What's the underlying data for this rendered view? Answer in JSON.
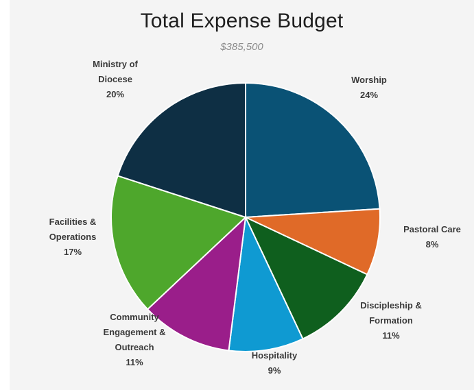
{
  "chart_data": {
    "type": "pie",
    "title": "Total Expense Budget",
    "subtitle": "$385,500",
    "slices": [
      {
        "label": [
          "Worship"
        ],
        "pct_label": "24%",
        "value": 24,
        "color": "#0a5275"
      },
      {
        "label": [
          "Pastoral Care"
        ],
        "pct_label": "8%",
        "value": 8,
        "color": "#e06a28"
      },
      {
        "label": [
          "Discipleship &",
          "Formation"
        ],
        "pct_label": "11%",
        "value": 11,
        "color": "#0f5f1e"
      },
      {
        "label": [
          "Hospitality"
        ],
        "pct_label": "9%",
        "value": 9,
        "color": "#0f9ad2"
      },
      {
        "label": [
          "Community",
          "Engagement &",
          "Outreach"
        ],
        "pct_label": "11%",
        "value": 11,
        "color": "#9a1e8a"
      },
      {
        "label": [
          "Facilities &",
          "Operations"
        ],
        "pct_label": "17%",
        "value": 17,
        "color": "#4ea72c"
      },
      {
        "label": [
          "Ministry of",
          "Diocese"
        ],
        "pct_label": "20%",
        "value": 20,
        "color": "#0e2f44"
      }
    ]
  }
}
